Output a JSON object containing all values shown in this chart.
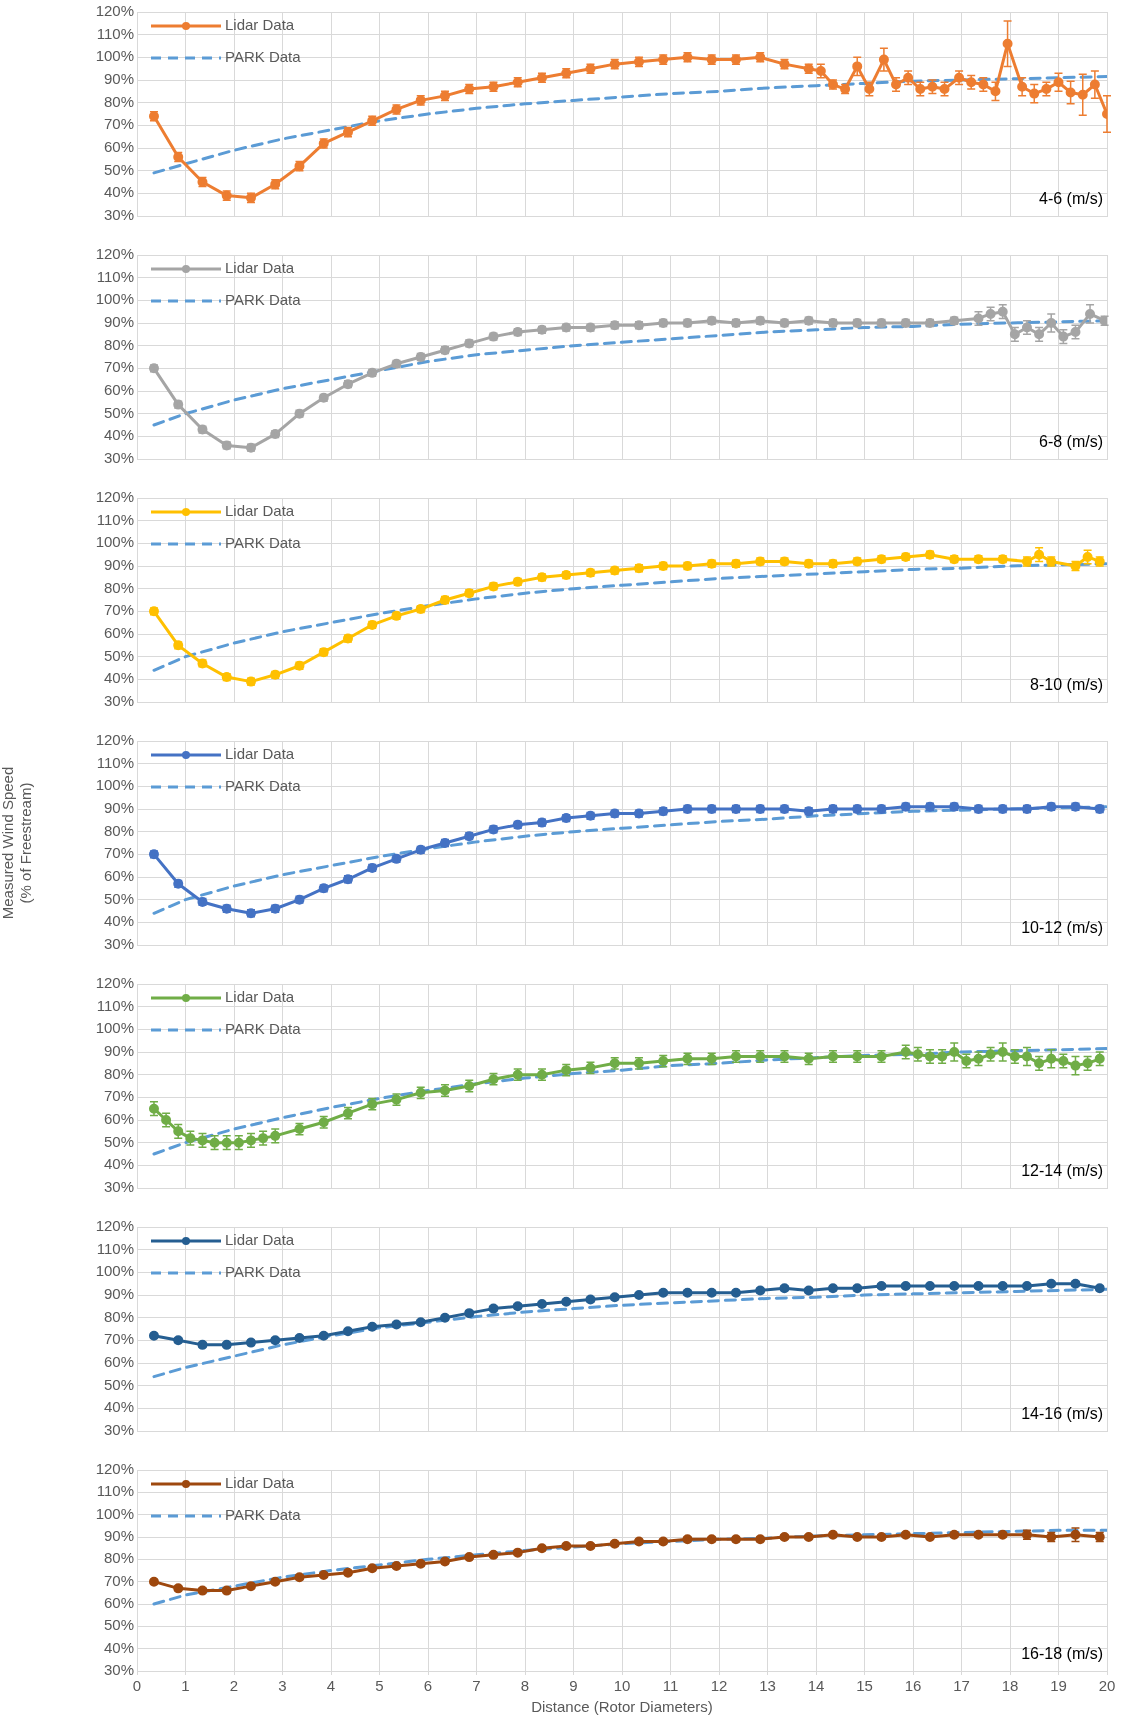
{
  "chart_data": [
    {
      "type": "line",
      "xlim": [
        0,
        20
      ],
      "xticks": [
        0,
        1,
        2,
        3,
        4,
        5,
        6,
        7,
        8,
        9,
        10,
        11,
        12,
        13,
        14,
        15,
        16,
        17,
        18,
        19,
        20
      ],
      "ylim": [
        30,
        120
      ],
      "yticks": [
        {
          "value": 30,
          "label": "30%"
        },
        {
          "value": 40,
          "label": "40%"
        },
        {
          "value": 50,
          "label": "50%"
        },
        {
          "value": 60,
          "label": "60%"
        },
        {
          "value": 70,
          "label": "70%"
        },
        {
          "value": 80,
          "label": "80%"
        },
        {
          "value": 90,
          "label": "90%"
        },
        {
          "value": 100,
          "label": "100%"
        },
        {
          "value": 110,
          "label": "110%"
        },
        {
          "value": 120,
          "label": "120%"
        }
      ],
      "tick_labels": "y",
      "grid": true,
      "legend": "top left",
      "annotations": [
        "4-6 (m/s)"
      ],
      "series": [
        {
          "name": "Lidar Data",
          "color": "#ed7d31",
          "marker": "circle",
          "line_style": "solid",
          "x": [
            0.35,
            0.85,
            1.35,
            1.85,
            2.35,
            2.85,
            3.35,
            3.85,
            4.35,
            4.85,
            5.35,
            5.85,
            6.35,
            6.85,
            7.35,
            7.85,
            8.35,
            8.85,
            9.35,
            9.85,
            10.35,
            10.85,
            11.35,
            11.85,
            12.35,
            12.85,
            13.35,
            13.85,
            14.1,
            14.35,
            14.6,
            14.85,
            15.1,
            15.4,
            15.65,
            15.9,
            16.15,
            16.4,
            16.65,
            16.95,
            17.2,
            17.45,
            17.7,
            17.95,
            18.25,
            18.5,
            18.75,
            19.0,
            19.25,
            19.5,
            19.75,
            20.0
          ],
          "values": [
            74,
            56,
            45,
            39,
            38,
            44,
            52,
            62,
            67,
            72,
            77,
            81,
            83,
            86,
            87,
            89,
            91,
            93,
            95,
            97,
            98,
            99,
            100,
            99,
            99,
            100,
            97,
            95,
            94,
            88,
            86,
            96,
            86,
            99,
            88,
            91,
            86,
            87,
            86,
            91,
            89,
            88,
            85,
            106,
            87,
            84,
            86,
            89,
            84.5,
            83.5,
            88,
            75
          ],
          "errors": [
            2,
            2,
            2,
            2,
            2,
            2,
            2,
            2,
            2,
            2,
            2,
            2,
            2,
            2,
            2,
            2,
            2,
            2,
            2,
            2,
            2,
            2,
            2,
            2,
            2,
            2,
            2,
            2,
            3,
            2,
            2,
            4,
            3,
            5,
            3,
            3,
            3,
            3,
            3,
            3,
            3,
            3,
            4,
            10,
            4,
            4,
            3,
            4,
            5,
            9,
            6,
            8
          ]
        },
        {
          "name": "PARK Data",
          "color": "#5b9bd5",
          "marker": "none",
          "line_style": "dashed",
          "x": [
            0.35,
            1,
            2,
            3,
            4,
            5,
            6,
            7,
            8,
            9,
            10,
            11,
            12,
            13,
            14,
            15,
            16,
            17,
            18,
            19,
            20
          ],
          "values": [
            49,
            53,
            59,
            64,
            68,
            72,
            75,
            77.5,
            79.5,
            81,
            82.5,
            84,
            85,
            86.5,
            87.5,
            88.5,
            89.5,
            90,
            90.5,
            91,
            91.5
          ]
        }
      ]
    },
    {
      "type": "line",
      "xlim": [
        0,
        20
      ],
      "xticks": [
        0,
        1,
        2,
        3,
        4,
        5,
        6,
        7,
        8,
        9,
        10,
        11,
        12,
        13,
        14,
        15,
        16,
        17,
        18,
        19,
        20
      ],
      "ylim": [
        30,
        120
      ],
      "yticks": [
        {
          "value": 30,
          "label": "30%"
        },
        {
          "value": 40,
          "label": "40%"
        },
        {
          "value": 50,
          "label": "50%"
        },
        {
          "value": 60,
          "label": "60%"
        },
        {
          "value": 70,
          "label": "70%"
        },
        {
          "value": 80,
          "label": "80%"
        },
        {
          "value": 90,
          "label": "90%"
        },
        {
          "value": 100,
          "label": "100%"
        },
        {
          "value": 110,
          "label": "110%"
        },
        {
          "value": 120,
          "label": "120%"
        }
      ],
      "tick_labels": "y",
      "grid": true,
      "legend": "top left",
      "annotations": [
        "6-8 (m/s)"
      ],
      "series": [
        {
          "name": "Lidar Data",
          "color": "#a5a5a5",
          "marker": "circle",
          "line_style": "solid",
          "x": [
            0.35,
            0.85,
            1.35,
            1.85,
            2.35,
            2.85,
            3.35,
            3.85,
            4.35,
            4.85,
            5.35,
            5.85,
            6.35,
            6.85,
            7.35,
            7.85,
            8.35,
            8.85,
            9.35,
            9.85,
            10.35,
            10.85,
            11.35,
            11.85,
            12.35,
            12.85,
            13.35,
            13.85,
            14.35,
            14.85,
            15.35,
            15.85,
            16.35,
            16.85,
            17.35,
            17.6,
            17.85,
            18.1,
            18.35,
            18.6,
            18.85,
            19.1,
            19.35,
            19.65,
            19.95
          ],
          "values": [
            70,
            54,
            43,
            36,
            35,
            41,
            50,
            57,
            63,
            68,
            72,
            75,
            78,
            81,
            84,
            86,
            87,
            88,
            88,
            89,
            89,
            90,
            90,
            91,
            90,
            91,
            90,
            91,
            90,
            90,
            90,
            90,
            90,
            91,
            92,
            94,
            95,
            85,
            88,
            85,
            90,
            84,
            86,
            94,
            91
          ],
          "errors": [
            1.5,
            1.5,
            1.5,
            1.5,
            1.5,
            1.5,
            1.5,
            1.5,
            1.5,
            1.5,
            1.5,
            1.5,
            1.5,
            1.5,
            1.5,
            1.5,
            1.5,
            1.5,
            1.5,
            1.5,
            1.5,
            1.5,
            1.5,
            1.5,
            1.5,
            1.5,
            1.5,
            1.5,
            1.5,
            1.5,
            1.5,
            1.5,
            1.5,
            1.5,
            3,
            3,
            3,
            3,
            3,
            3,
            4,
            3,
            3,
            4,
            2
          ]
        },
        {
          "name": "PARK Data",
          "color": "#5b9bd5",
          "marker": "none",
          "line_style": "dashed",
          "x": [
            0.35,
            1,
            2,
            3,
            4,
            5,
            6,
            7,
            8,
            9,
            10,
            11,
            12,
            13,
            14,
            15,
            16,
            17,
            18,
            19,
            20
          ],
          "values": [
            45,
            50,
            56,
            61,
            65,
            69,
            73,
            76,
            78,
            80,
            81.5,
            83,
            84.5,
            86,
            87,
            88,
            88.5,
            89.5,
            90,
            90.5,
            91
          ]
        }
      ]
    },
    {
      "type": "line",
      "xlim": [
        0,
        20
      ],
      "xticks": [
        0,
        1,
        2,
        3,
        4,
        5,
        6,
        7,
        8,
        9,
        10,
        11,
        12,
        13,
        14,
        15,
        16,
        17,
        18,
        19,
        20
      ],
      "ylim": [
        30,
        120
      ],
      "yticks": [
        {
          "value": 30,
          "label": "30%"
        },
        {
          "value": 40,
          "label": "40%"
        },
        {
          "value": 50,
          "label": "50%"
        },
        {
          "value": 60,
          "label": "60%"
        },
        {
          "value": 70,
          "label": "70%"
        },
        {
          "value": 80,
          "label": "80%"
        },
        {
          "value": 90,
          "label": "90%"
        },
        {
          "value": 100,
          "label": "100%"
        },
        {
          "value": 110,
          "label": "110%"
        },
        {
          "value": 120,
          "label": "120%"
        }
      ],
      "tick_labels": "y",
      "grid": true,
      "legend": "top left",
      "annotations": [
        "8-10 (m/s)"
      ],
      "series": [
        {
          "name": "Lidar Data",
          "color": "#ffc000",
          "marker": "circle",
          "line_style": "solid",
          "x": [
            0.35,
            0.85,
            1.35,
            1.85,
            2.35,
            2.85,
            3.35,
            3.85,
            4.35,
            4.85,
            5.35,
            5.85,
            6.35,
            6.85,
            7.35,
            7.85,
            8.35,
            8.85,
            9.35,
            9.85,
            10.35,
            10.85,
            11.35,
            11.85,
            12.35,
            12.85,
            13.35,
            13.85,
            14.35,
            14.85,
            15.35,
            15.85,
            16.35,
            16.85,
            17.35,
            17.85,
            18.35,
            18.6,
            18.85,
            19.35,
            19.6,
            19.85
          ],
          "values": [
            70,
            55,
            47,
            41,
            39,
            42,
            46,
            52,
            58,
            64,
            68,
            71,
            75,
            78,
            81,
            83,
            85,
            86,
            87,
            88,
            89,
            90,
            90,
            91,
            91,
            92,
            92,
            91,
            91,
            92,
            93,
            94,
            95,
            93,
            93,
            93,
            92,
            95,
            92,
            90,
            94,
            92
          ],
          "errors": [
            1.5,
            1.5,
            1.5,
            1.5,
            1.5,
            1.5,
            1.5,
            1.5,
            1.5,
            1.5,
            1.5,
            1.5,
            1.5,
            1.5,
            1.5,
            1.5,
            1.5,
            1.5,
            1.5,
            1.5,
            1.5,
            1.5,
            1.5,
            1.5,
            1.5,
            1.5,
            1.5,
            1.5,
            1.5,
            1.5,
            1.5,
            1.5,
            1.5,
            1.5,
            1.5,
            1.5,
            2,
            3,
            2,
            2,
            3,
            2
          ]
        },
        {
          "name": "PARK Data",
          "color": "#5b9bd5",
          "marker": "none",
          "line_style": "dashed",
          "x": [
            0.35,
            1,
            2,
            3,
            4,
            5,
            6,
            7,
            8,
            9,
            10,
            11,
            12,
            13,
            14,
            15,
            16,
            17,
            18,
            19,
            20
          ],
          "values": [
            44,
            50,
            56,
            61,
            65,
            69,
            72.5,
            75.5,
            78,
            80,
            81.5,
            83,
            84.5,
            85.5,
            86.5,
            87.5,
            88.5,
            89,
            90,
            90.5,
            91
          ]
        }
      ]
    },
    {
      "type": "line",
      "xlim": [
        0,
        20
      ],
      "xticks": [
        0,
        1,
        2,
        3,
        4,
        5,
        6,
        7,
        8,
        9,
        10,
        11,
        12,
        13,
        14,
        15,
        16,
        17,
        18,
        19,
        20
      ],
      "ylim": [
        30,
        120
      ],
      "yticks": [
        {
          "value": 30,
          "label": "30%"
        },
        {
          "value": 40,
          "label": "40%"
        },
        {
          "value": 50,
          "label": "50%"
        },
        {
          "value": 60,
          "label": "60%"
        },
        {
          "value": 70,
          "label": "70%"
        },
        {
          "value": 80,
          "label": "80%"
        },
        {
          "value": 90,
          "label": "90%"
        },
        {
          "value": 100,
          "label": "100%"
        },
        {
          "value": 110,
          "label": "110%"
        },
        {
          "value": 120,
          "label": "120%"
        }
      ],
      "tick_labels": "y",
      "grid": true,
      "legend": "top left",
      "ylabel": "Measured Wind Speed (% of Freestream)",
      "annotations": [
        "10-12 (m/s)"
      ],
      "series": [
        {
          "name": "Lidar Data",
          "color": "#4472c4",
          "marker": "circle",
          "line_style": "solid",
          "x": [
            0.35,
            0.85,
            1.35,
            1.85,
            2.35,
            2.85,
            3.35,
            3.85,
            4.35,
            4.85,
            5.35,
            5.85,
            6.35,
            6.85,
            7.35,
            7.85,
            8.35,
            8.85,
            9.35,
            9.85,
            10.35,
            10.85,
            11.35,
            11.85,
            12.35,
            12.85,
            13.35,
            13.85,
            14.35,
            14.85,
            15.35,
            15.85,
            16.35,
            16.85,
            17.35,
            17.85,
            18.35,
            18.85,
            19.35,
            19.85
          ],
          "values": [
            70,
            57,
            49,
            46,
            44,
            46,
            50,
            55,
            59,
            64,
            68,
            72,
            75,
            78,
            81,
            83,
            84,
            86,
            87,
            88,
            88,
            89,
            90,
            90,
            90,
            90,
            90,
            89,
            90,
            90,
            90,
            91,
            91,
            91,
            90,
            90,
            90,
            91,
            91,
            90
          ],
          "errors": [
            1.5,
            1.5,
            1.5,
            1.5,
            1.5,
            1.5,
            1.5,
            1.5,
            1.5,
            1.5,
            1.5,
            1.5,
            1.5,
            1.5,
            1.5,
            1.5,
            1.5,
            1.5,
            1.5,
            1.5,
            1.5,
            1.5,
            1.5,
            1.5,
            1.5,
            1.5,
            1.5,
            1.5,
            1.5,
            1.5,
            1.5,
            1.5,
            1.5,
            1.5,
            1.5,
            1.5,
            1.5,
            1.5,
            1.5,
            1.5
          ]
        },
        {
          "name": "PARK Data",
          "color": "#5b9bd5",
          "marker": "none",
          "line_style": "dashed",
          "x": [
            0.35,
            1,
            2,
            3,
            4,
            5,
            6,
            7,
            8,
            9,
            10,
            11,
            12,
            13,
            14,
            15,
            16,
            17,
            18,
            19,
            20
          ],
          "values": [
            44,
            50,
            56,
            61,
            65,
            69,
            72.5,
            75.5,
            78,
            80,
            81.5,
            83,
            84.5,
            85.5,
            87,
            88,
            89,
            89.5,
            90,
            90.5,
            91
          ]
        }
      ]
    },
    {
      "type": "line",
      "xlim": [
        0,
        20
      ],
      "xticks": [
        0,
        1,
        2,
        3,
        4,
        5,
        6,
        7,
        8,
        9,
        10,
        11,
        12,
        13,
        14,
        15,
        16,
        17,
        18,
        19,
        20
      ],
      "ylim": [
        30,
        120
      ],
      "yticks": [
        {
          "value": 30,
          "label": "30%"
        },
        {
          "value": 40,
          "label": "40%"
        },
        {
          "value": 50,
          "label": "50%"
        },
        {
          "value": 60,
          "label": "60%"
        },
        {
          "value": 70,
          "label": "70%"
        },
        {
          "value": 80,
          "label": "80%"
        },
        {
          "value": 90,
          "label": "90%"
        },
        {
          "value": 100,
          "label": "100%"
        },
        {
          "value": 110,
          "label": "110%"
        },
        {
          "value": 120,
          "label": "120%"
        }
      ],
      "tick_labels": "y",
      "grid": true,
      "legend": "top left",
      "annotations": [
        "12-14 (m/s)"
      ],
      "series": [
        {
          "name": "Lidar Data",
          "color": "#70ad47",
          "marker": "circle",
          "line_style": "solid",
          "x": [
            0.35,
            0.6,
            0.85,
            1.1,
            1.35,
            1.6,
            1.85,
            2.1,
            2.35,
            2.6,
            2.85,
            3.35,
            3.85,
            4.35,
            4.85,
            5.35,
            5.85,
            6.35,
            6.85,
            7.35,
            7.85,
            8.35,
            8.85,
            9.35,
            9.85,
            10.35,
            10.85,
            11.35,
            11.85,
            12.35,
            12.85,
            13.35,
            13.85,
            14.35,
            14.85,
            15.35,
            15.85,
            16.1,
            16.35,
            16.6,
            16.85,
            17.1,
            17.35,
            17.6,
            17.85,
            18.1,
            18.35,
            18.6,
            18.85,
            19.1,
            19.35,
            19.6,
            19.85
          ],
          "values": [
            65,
            60,
            55,
            52,
            51,
            50,
            50,
            50,
            51,
            52,
            53,
            56,
            59,
            63,
            67,
            69,
            72,
            73,
            75,
            78,
            80,
            80,
            82,
            83,
            85,
            85,
            86,
            87,
            87,
            88,
            88,
            88,
            87,
            88,
            88,
            88,
            90,
            89,
            88,
            88,
            90,
            86,
            87,
            89,
            90,
            88,
            88,
            85,
            87,
            86,
            84,
            85,
            87
          ],
          "errors": [
            3,
            3,
            3,
            3,
            3,
            3,
            3,
            3,
            3,
            3,
            3,
            2.5,
            2.5,
            2.5,
            2.5,
            2.5,
            2.5,
            2.5,
            2.5,
            2.5,
            2.5,
            2.5,
            2.5,
            2.5,
            2.5,
            2.5,
            2.5,
            2.5,
            2.5,
            2.5,
            2.5,
            2.5,
            2.5,
            2.5,
            2.5,
            2.5,
            3,
            3,
            3,
            3,
            4,
            3,
            3,
            3,
            4,
            3,
            4,
            3,
            4,
            3,
            4,
            3,
            3
          ]
        },
        {
          "name": "PARK Data",
          "color": "#5b9bd5",
          "marker": "none",
          "line_style": "dashed",
          "x": [
            0.35,
            1,
            2,
            3,
            4,
            5,
            6,
            7,
            8,
            9,
            10,
            11,
            12,
            13,
            14,
            15,
            16,
            17,
            18,
            19,
            20
          ],
          "values": [
            45,
            50,
            56,
            61,
            65.5,
            69.5,
            73,
            76,
            78.5,
            80.5,
            82,
            84,
            85,
            86.5,
            87.5,
            88.5,
            89,
            90,
            90.5,
            91,
            91.5
          ]
        }
      ]
    },
    {
      "type": "line",
      "xlim": [
        0,
        20
      ],
      "xticks": [
        0,
        1,
        2,
        3,
        4,
        5,
        6,
        7,
        8,
        9,
        10,
        11,
        12,
        13,
        14,
        15,
        16,
        17,
        18,
        19,
        20
      ],
      "ylim": [
        30,
        120
      ],
      "yticks": [
        {
          "value": 30,
          "label": "30%"
        },
        {
          "value": 40,
          "label": "40%"
        },
        {
          "value": 50,
          "label": "50%"
        },
        {
          "value": 60,
          "label": "60%"
        },
        {
          "value": 70,
          "label": "70%"
        },
        {
          "value": 80,
          "label": "80%"
        },
        {
          "value": 90,
          "label": "90%"
        },
        {
          "value": 100,
          "label": "100%"
        },
        {
          "value": 110,
          "label": "110%"
        },
        {
          "value": 120,
          "label": "120%"
        }
      ],
      "tick_labels": "y",
      "grid": true,
      "legend": "top left",
      "annotations": [
        "14-16 (m/s)"
      ],
      "series": [
        {
          "name": "Lidar Data",
          "color": "#255e91",
          "marker": "circle",
          "line_style": "solid",
          "x": [
            0.35,
            0.85,
            1.35,
            1.85,
            2.35,
            2.85,
            3.35,
            3.85,
            4.35,
            4.85,
            5.35,
            5.85,
            6.35,
            6.85,
            7.35,
            7.85,
            8.35,
            8.85,
            9.35,
            9.85,
            10.35,
            10.85,
            11.35,
            11.85,
            12.35,
            12.85,
            13.35,
            13.85,
            14.35,
            14.85,
            15.35,
            15.85,
            16.35,
            16.85,
            17.35,
            17.85,
            18.35,
            18.85,
            19.35,
            19.85
          ],
          "values": [
            72,
            70,
            68,
            68,
            69,
            70,
            71,
            72,
            74,
            76,
            77,
            78,
            80,
            82,
            84,
            85,
            86,
            87,
            88,
            89,
            90,
            91,
            91,
            91,
            91,
            92,
            93,
            92,
            93,
            93,
            94,
            94,
            94,
            94,
            94,
            94,
            94,
            95,
            95,
            93
          ],
          "errors": [
            1,
            1,
            1,
            1,
            1,
            1,
            1,
            1,
            1,
            1,
            1,
            1,
            1,
            1,
            1,
            1,
            1,
            1,
            1,
            1,
            1,
            1,
            1,
            1,
            1,
            1,
            1,
            1,
            1,
            1,
            1,
            1,
            1,
            1,
            1,
            1,
            1,
            1,
            1,
            1
          ]
        },
        {
          "name": "PARK Data",
          "color": "#5b9bd5",
          "marker": "none",
          "line_style": "dashed",
          "x": [
            0.35,
            1,
            2,
            3,
            4,
            5,
            6,
            7,
            8,
            9,
            10,
            11,
            12,
            13,
            14,
            15,
            16,
            17,
            18,
            19,
            20
          ],
          "values": [
            54,
            58,
            63,
            68,
            72,
            75.5,
            78,
            80.5,
            82.5,
            84,
            85.5,
            86.5,
            87.5,
            88.5,
            89,
            90,
            90.5,
            91,
            91.5,
            92,
            92.5
          ]
        }
      ]
    },
    {
      "type": "line",
      "xlim": [
        0,
        20
      ],
      "xticks": [
        0,
        1,
        2,
        3,
        4,
        5,
        6,
        7,
        8,
        9,
        10,
        11,
        12,
        13,
        14,
        15,
        16,
        17,
        18,
        19,
        20
      ],
      "ylim": [
        30,
        120
      ],
      "yticks": [
        {
          "value": 30,
          "label": "30%"
        },
        {
          "value": 40,
          "label": "40%"
        },
        {
          "value": 50,
          "label": "50%"
        },
        {
          "value": 60,
          "label": "60%"
        },
        {
          "value": 70,
          "label": "70%"
        },
        {
          "value": 80,
          "label": "80%"
        },
        {
          "value": 90,
          "label": "90%"
        },
        {
          "value": 100,
          "label": "100%"
        },
        {
          "value": 110,
          "label": "110%"
        },
        {
          "value": 120,
          "label": "120%"
        }
      ],
      "grid": true,
      "legend": "top left",
      "xlabel": "Distance (Rotor Diameters)",
      "annotations": [
        "16-18 (m/s)"
      ],
      "series": [
        {
          "name": "Lidar Data",
          "color": "#9e480e",
          "marker": "circle",
          "line_style": "solid",
          "x": [
            0.35,
            0.85,
            1.35,
            1.85,
            2.35,
            2.85,
            3.35,
            3.85,
            4.35,
            4.85,
            5.35,
            5.85,
            6.35,
            6.85,
            7.35,
            7.85,
            8.35,
            8.85,
            9.35,
            9.85,
            10.35,
            10.85,
            11.35,
            11.85,
            12.35,
            12.85,
            13.35,
            13.85,
            14.35,
            14.85,
            15.35,
            15.85,
            16.35,
            16.85,
            17.35,
            17.85,
            18.35,
            18.85,
            19.35,
            19.85
          ],
          "values": [
            70,
            67,
            66,
            66,
            68,
            70,
            72,
            73,
            74,
            76,
            77,
            78,
            79,
            81,
            82,
            83,
            85,
            86,
            86,
            87,
            88,
            88,
            89,
            89,
            89,
            89,
            90,
            90,
            91,
            90,
            90,
            91,
            90,
            91,
            91,
            91,
            91,
            90,
            91,
            90
          ],
          "errors": [
            1,
            1,
            1,
            1,
            1,
            1,
            1,
            1,
            1,
            1,
            1,
            1,
            1,
            1,
            1,
            1,
            1,
            1,
            1,
            1,
            1,
            1,
            1,
            1,
            1,
            1,
            1,
            1,
            1,
            1,
            1,
            1,
            1,
            1,
            1,
            1,
            2,
            2,
            3,
            2
          ]
        },
        {
          "name": "PARK Data",
          "color": "#5b9bd5",
          "marker": "none",
          "line_style": "dashed",
          "x": [
            0.35,
            1,
            2,
            3,
            4,
            5,
            6,
            7,
            8,
            9,
            10,
            11,
            12,
            13,
            14,
            15,
            16,
            17,
            18,
            19,
            20
          ],
          "values": [
            60,
            64,
            68,
            72,
            75,
            77.5,
            80,
            82,
            84,
            85.5,
            87,
            88,
            89,
            89.5,
            90.5,
            91,
            91.5,
            92,
            92.5,
            93,
            93
          ]
        }
      ]
    }
  ]
}
